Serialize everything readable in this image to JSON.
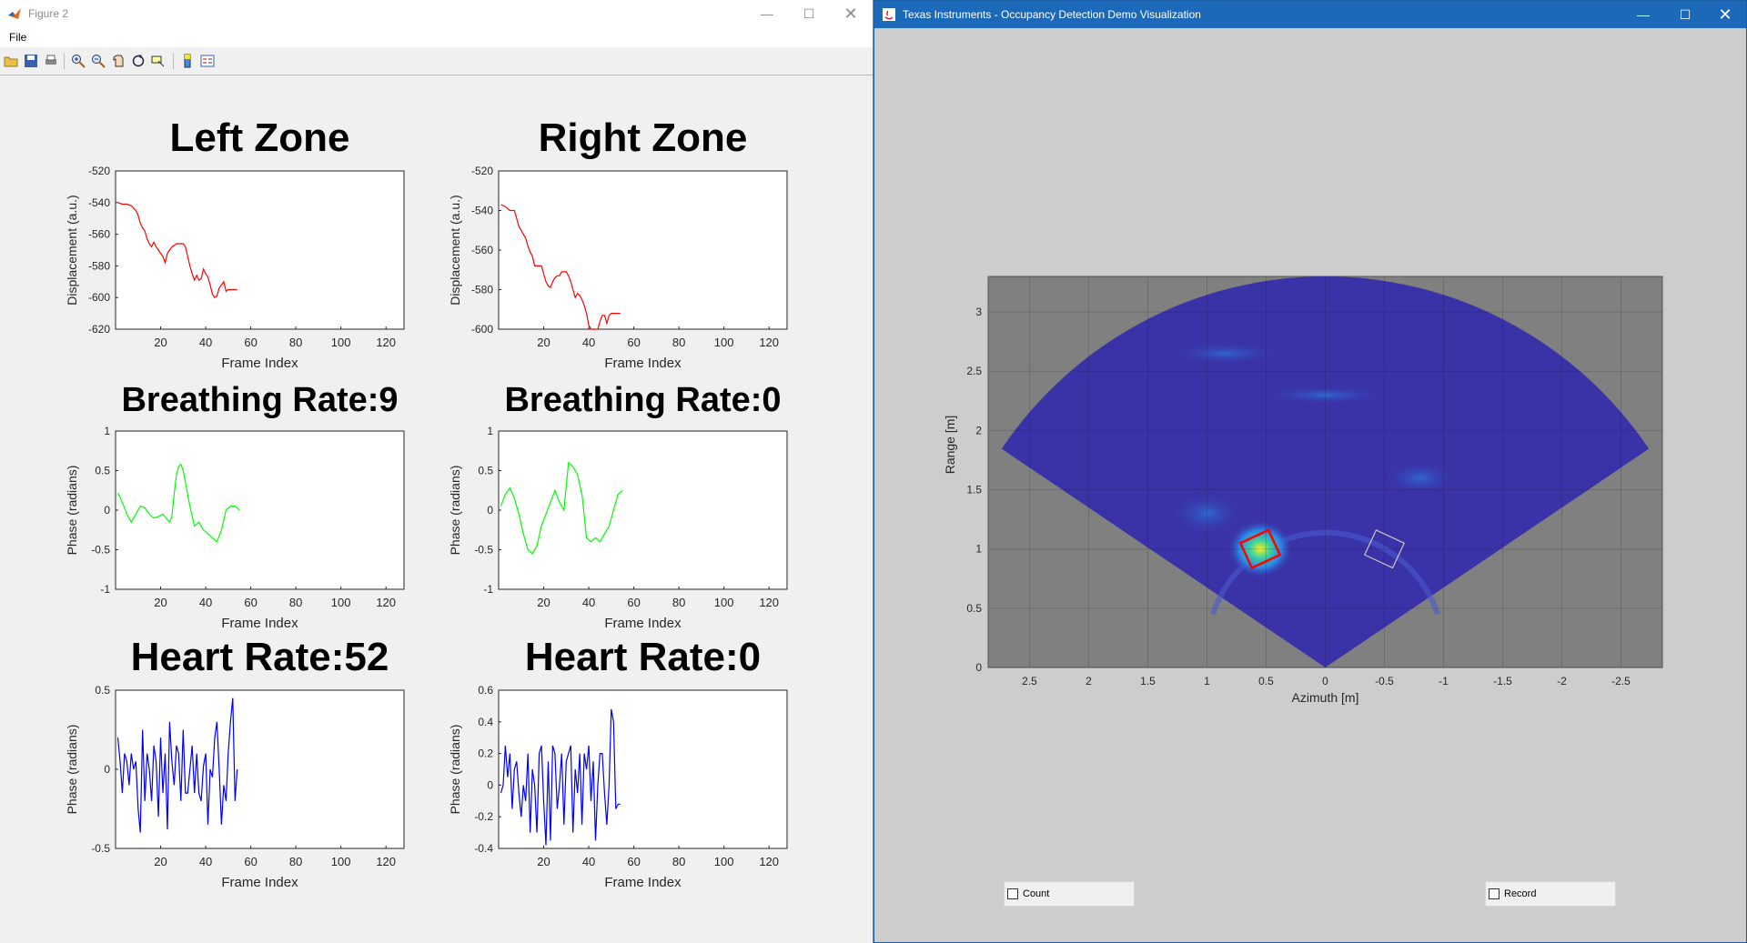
{
  "figure_window": {
    "title": "Figure 2",
    "menu": [
      "File"
    ],
    "toolbar_icons": [
      "open-icon",
      "save-icon",
      "print-icon",
      "zoom-in-icon",
      "zoom-out-icon",
      "pan-icon",
      "rotate-icon",
      "data-cursor-icon",
      "colorbar-icon",
      "legend-icon"
    ],
    "panels": [
      {
        "title": "Left Zone",
        "ylabel": "Displacement (a.u.)",
        "xlabel": "Frame Index",
        "color": "#ff0000",
        "yticks": [
          "-520",
          "-540",
          "-560",
          "-580",
          "-600",
          "-620"
        ]
      },
      {
        "title": "Right Zone",
        "ylabel": "Displacement (a.u.)",
        "xlabel": "Frame Index",
        "color": "#ff0000",
        "yticks": [
          "-520",
          "-540",
          "-560",
          "-580",
          "-600"
        ]
      },
      {
        "title": "Breathing Rate:9",
        "ylabel": "Phase (radians)",
        "xlabel": "Frame Index",
        "color": "#00ff00",
        "yticks": [
          "1",
          "0.5",
          "0",
          "-0.5",
          "-1"
        ]
      },
      {
        "title": "Breathing Rate:0",
        "ylabel": "Phase (radians)",
        "xlabel": "Frame Index",
        "color": "#00ff00",
        "yticks": [
          "1",
          "0.5",
          "0",
          "-0.5",
          "-1"
        ]
      },
      {
        "title": "Heart Rate:52",
        "ylabel": "Phase (radians)",
        "xlabel": "Frame Index",
        "color": "#0000ff",
        "yticks": [
          "0.5",
          "0",
          "-0.5"
        ]
      },
      {
        "title": "Heart Rate:0",
        "ylabel": "Phase (radians)",
        "xlabel": "Frame Index",
        "color": "#0000ff",
        "yticks": [
          "0.6",
          "0.4",
          "0.2",
          "0",
          "-0.2",
          "-0.4"
        ]
      }
    ],
    "xticks": [
      "20",
      "40",
      "60",
      "80",
      "100",
      "120"
    ]
  },
  "chart_data": [
    {
      "type": "line",
      "title": "Left Zone",
      "xlabel": "Frame Index",
      "ylabel": "Displacement (a.u.)",
      "xlim": [
        0,
        128
      ],
      "ylim": [
        -620,
        -520
      ],
      "series": [
        {
          "color": "#ff0000",
          "x": [
            1,
            3,
            5,
            7,
            9,
            10,
            11,
            12,
            13,
            14,
            15,
            16,
            17,
            18,
            19,
            20,
            21,
            22,
            23,
            24,
            25,
            26,
            27,
            28,
            29,
            30,
            31,
            32,
            33,
            34,
            35,
            36,
            37,
            38,
            39,
            40,
            41,
            42,
            43,
            44,
            45,
            46,
            47,
            48,
            49,
            50,
            51,
            52,
            53,
            54
          ],
          "y": [
            -540,
            -541,
            -541,
            -542,
            -545,
            -548,
            -553,
            -556,
            -558,
            -563,
            -566,
            -568,
            -565,
            -568,
            -570,
            -572,
            -574,
            -578,
            -572,
            -570,
            -568,
            -567,
            -566,
            -566,
            -566,
            -566,
            -568,
            -574,
            -580,
            -585,
            -589,
            -586,
            -589,
            -588,
            -582,
            -585,
            -587,
            -592,
            -598,
            -600,
            -599,
            -594,
            -592,
            -590,
            -596,
            -595,
            -595,
            -595,
            -595,
            -595
          ]
        }
      ]
    },
    {
      "type": "line",
      "title": "Right Zone",
      "xlabel": "Frame Index",
      "ylabel": "Displacement (a.u.)",
      "xlim": [
        0,
        128
      ],
      "ylim": [
        -600,
        -520
      ],
      "series": [
        {
          "color": "#ff0000",
          "x": [
            1,
            3,
            5,
            7,
            8,
            9,
            10,
            11,
            12,
            13,
            14,
            15,
            16,
            17,
            18,
            19,
            20,
            21,
            22,
            23,
            24,
            25,
            26,
            27,
            28,
            29,
            30,
            31,
            32,
            33,
            34,
            35,
            36,
            37,
            38,
            39,
            40,
            41,
            42,
            43,
            44,
            45,
            46,
            47,
            48,
            49,
            50,
            51,
            52,
            53,
            54
          ],
          "y": [
            -537,
            -538,
            -540,
            -540,
            -544,
            -548,
            -550,
            -552,
            -554,
            -558,
            -561,
            -563,
            -568,
            -568,
            -568,
            -568,
            -572,
            -576,
            -578,
            -579,
            -576,
            -574,
            -573,
            -573,
            -571,
            -571,
            -571,
            -573,
            -576,
            -580,
            -584,
            -582,
            -583,
            -585,
            -588,
            -592,
            -598,
            -600,
            -600,
            -600,
            -600,
            -596,
            -593,
            -593,
            -597,
            -593,
            -592,
            -592,
            -592,
            -592,
            -592
          ]
        }
      ]
    },
    {
      "type": "line",
      "title": "Breathing Rate:9",
      "xlabel": "Frame Index",
      "ylabel": "Phase (radians)",
      "xlim": [
        0,
        128
      ],
      "ylim": [
        -1,
        1
      ],
      "series": [
        {
          "color": "#00ff00",
          "x": [
            1,
            3,
            5,
            7,
            9,
            11,
            13,
            15,
            17,
            19,
            21,
            23,
            24,
            25,
            26,
            27,
            28,
            29,
            30,
            31,
            33,
            35,
            37,
            39,
            41,
            43,
            45,
            47,
            49,
            51,
            53,
            55
          ],
          "y": [
            0.22,
            0.1,
            -0.05,
            -0.15,
            -0.05,
            0.05,
            0.03,
            -0.05,
            -0.1,
            -0.08,
            -0.05,
            -0.12,
            -0.15,
            -0.08,
            0.2,
            0.45,
            0.55,
            0.58,
            0.5,
            0.35,
            0.05,
            -0.2,
            -0.15,
            -0.25,
            -0.3,
            -0.35,
            -0.4,
            -0.25,
            0.0,
            0.05,
            0.05,
            0.0
          ]
        }
      ]
    },
    {
      "type": "line",
      "title": "Breathing Rate:0",
      "xlabel": "Frame Index",
      "ylabel": "Phase (radians)",
      "xlim": [
        0,
        128
      ],
      "ylim": [
        -1,
        1
      ],
      "series": [
        {
          "color": "#00ff00",
          "x": [
            1,
            3,
            5,
            7,
            9,
            11,
            13,
            15,
            17,
            19,
            21,
            23,
            25,
            27,
            29,
            30,
            31,
            33,
            35,
            37,
            39,
            41,
            43,
            45,
            47,
            49,
            51,
            53,
            55
          ],
          "y": [
            0.05,
            0.2,
            0.28,
            0.15,
            -0.05,
            -0.3,
            -0.5,
            -0.55,
            -0.45,
            -0.2,
            -0.05,
            0.1,
            0.25,
            0.1,
            0.0,
            0.3,
            0.6,
            0.55,
            0.45,
            0.2,
            -0.35,
            -0.4,
            -0.35,
            -0.4,
            -0.3,
            -0.2,
            0.0,
            0.2,
            0.25
          ]
        }
      ]
    },
    {
      "type": "line",
      "title": "Heart Rate:52",
      "xlabel": "Frame Index",
      "ylabel": "Phase (radians)",
      "xlim": [
        0,
        128
      ],
      "ylim": [
        -0.5,
        0.5
      ],
      "series": [
        {
          "color": "#0000ff",
          "x": [
            1,
            2,
            3,
            4,
            5,
            6,
            7,
            8,
            9,
            10,
            11,
            12,
            13,
            14,
            15,
            16,
            17,
            18,
            19,
            20,
            21,
            22,
            23,
            24,
            25,
            26,
            27,
            28,
            29,
            30,
            31,
            32,
            33,
            34,
            35,
            36,
            37,
            38,
            39,
            40,
            41,
            42,
            43,
            44,
            45,
            46,
            47,
            48,
            49,
            50,
            51,
            52,
            53,
            54
          ],
          "y": [
            0.2,
            0.05,
            -0.15,
            0.1,
            0.05,
            -0.1,
            0.1,
            0.0,
            0.05,
            -0.25,
            -0.4,
            0.25,
            -0.2,
            0.1,
            0.0,
            -0.2,
            0.15,
            0.05,
            -0.3,
            0.2,
            -0.15,
            0.1,
            -0.38,
            0.3,
            0.05,
            -0.1,
            0.15,
            0.1,
            -0.2,
            0.25,
            -0.15,
            -0.15,
            0.0,
            0.15,
            -0.15,
            0.1,
            -0.15,
            -0.2,
            0.02,
            0.1,
            -0.35,
            0.0,
            -0.05,
            0.2,
            0.3,
            0.0,
            -0.35,
            -0.1,
            -0.2,
            0.1,
            0.3,
            0.45,
            -0.2,
            0.0
          ]
        }
      ]
    },
    {
      "type": "line",
      "title": "Heart Rate:0",
      "xlabel": "Frame Index",
      "ylabel": "Phase (radians)",
      "xlim": [
        0,
        128
      ],
      "ylim": [
        -0.4,
        0.6
      ],
      "series": [
        {
          "color": "#0000ff",
          "x": [
            1,
            2,
            3,
            4,
            5,
            6,
            7,
            8,
            9,
            10,
            11,
            12,
            13,
            14,
            15,
            16,
            17,
            18,
            19,
            20,
            21,
            22,
            23,
            24,
            25,
            26,
            27,
            28,
            29,
            30,
            31,
            32,
            33,
            34,
            35,
            36,
            37,
            38,
            39,
            40,
            41,
            42,
            43,
            44,
            45,
            46,
            47,
            48,
            49,
            50,
            51,
            52,
            53,
            54
          ],
          "y": [
            -0.05,
            0.0,
            0.25,
            0.05,
            0.2,
            -0.15,
            0.1,
            0.15,
            -0.05,
            -0.2,
            0.0,
            -0.1,
            0.2,
            -0.3,
            0.1,
            0.0,
            -0.3,
            0.2,
            0.25,
            -0.1,
            -0.38,
            0.15,
            -0.35,
            0.25,
            0.2,
            -0.15,
            0.0,
            0.2,
            -0.25,
            0.15,
            0.2,
            0.25,
            -0.3,
            0.1,
            -0.05,
            0.2,
            -0.25,
            0.2,
            0.1,
            0.25,
            -0.1,
            0.15,
            -0.35,
            0.0,
            0.2,
            0.2,
            -0.05,
            -0.25,
            0.0,
            0.48,
            0.4,
            -0.15,
            -0.12,
            -0.12
          ]
        }
      ]
    },
    {
      "type": "heatmap",
      "xlabel": "Azimuth [m]",
      "ylabel": "Range [m]",
      "xlim": [
        2.85,
        -2.85
      ],
      "ylim": [
        0,
        3.3
      ],
      "xticks": [
        "2.5",
        "2",
        "1.5",
        "1",
        "0.5",
        "0",
        "-0.5",
        "-1",
        "-1.5",
        "-2",
        "-2.5"
      ],
      "yticks": [
        "0",
        "0.5",
        "1",
        "1.5",
        "2",
        "2.5",
        "3"
      ],
      "grid": true,
      "sector_half_angle_deg": 56,
      "max_range": 3.3,
      "hotspot": {
        "x": 0.55,
        "y": 1.0
      },
      "zones": [
        {
          "name": "left",
          "x": 0.55,
          "y": 1.0,
          "color": "#ff0000"
        },
        {
          "name": "right",
          "x": -0.5,
          "y": 1.0,
          "color": "#c8c8c8"
        }
      ]
    }
  ],
  "ti_window": {
    "title": "Texas Instruments - Occupancy Detection Demo Visualization",
    "xlabel": "Azimuth [m]",
    "ylabel": "Range [m]",
    "count_label": "Count",
    "record_label": "Record",
    "colors": {
      "background": "#cdcdcd",
      "plot_bg": "#808080",
      "sector": "#3a33a8",
      "titlebar": "#1c69b9"
    }
  }
}
